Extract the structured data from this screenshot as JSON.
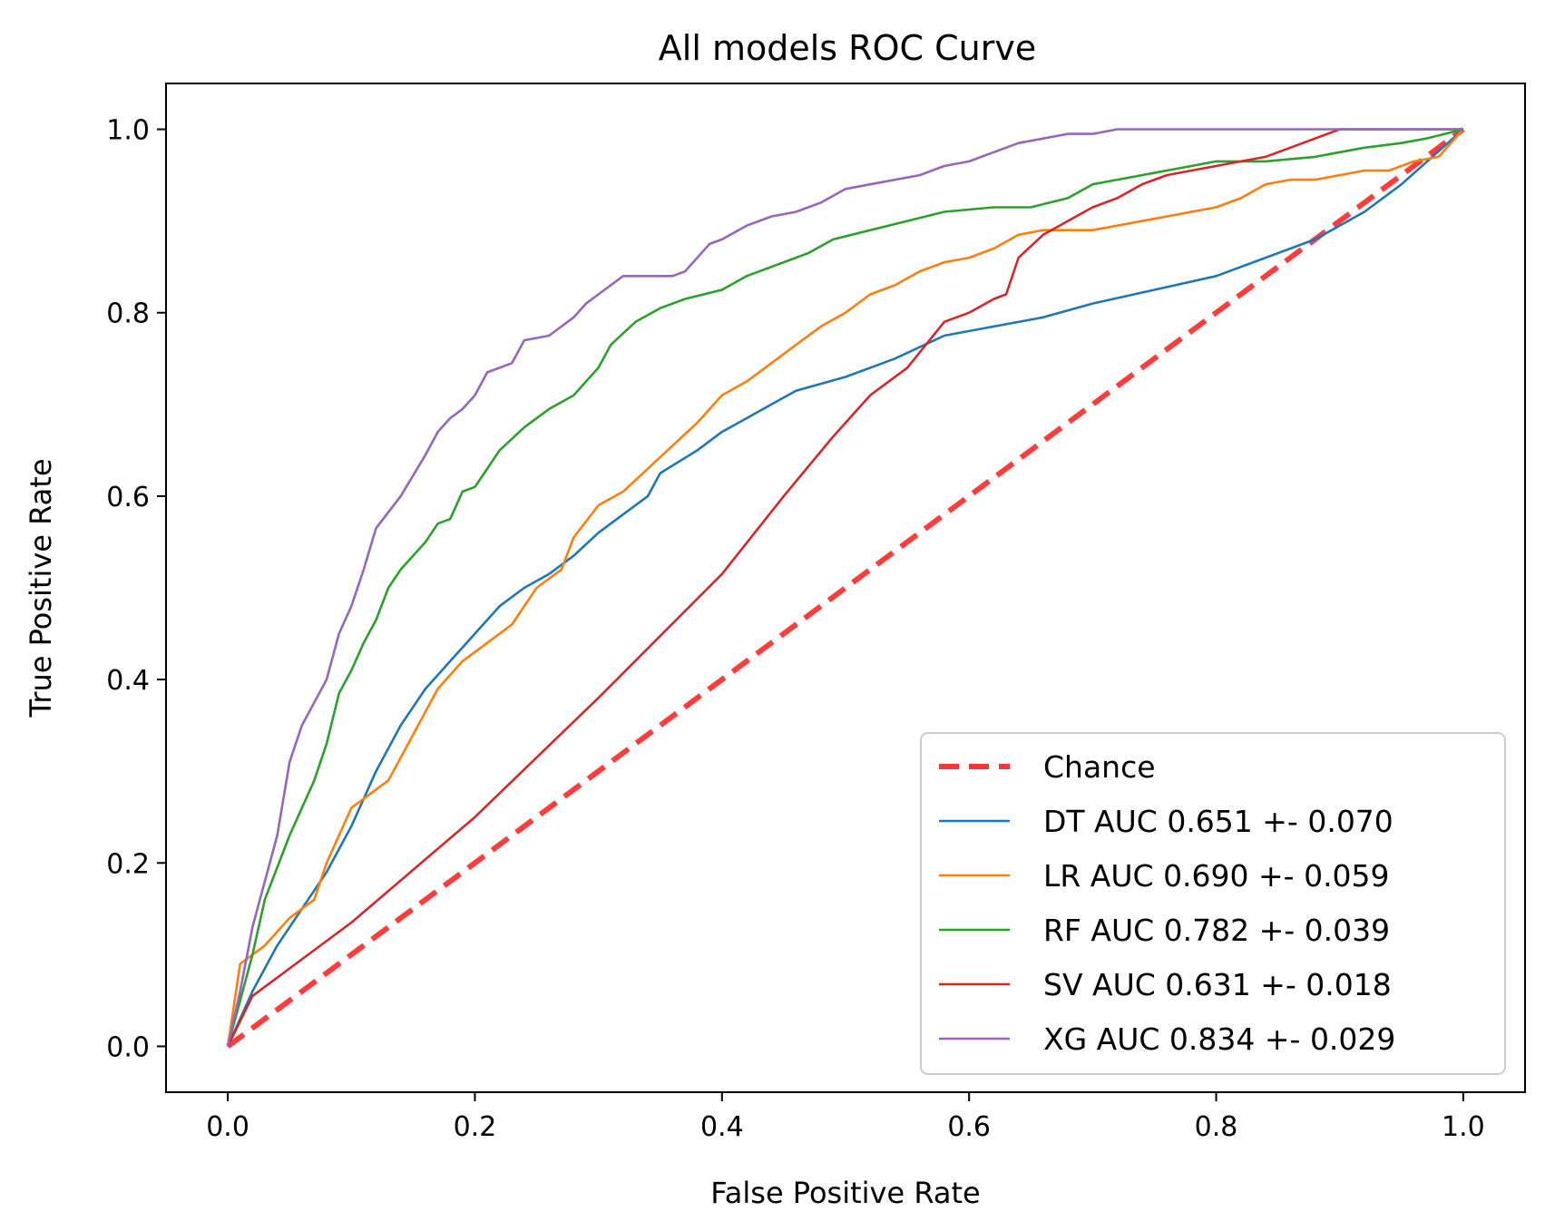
{
  "chart_data": {
    "type": "line",
    "title": "All models ROC Curve",
    "xlabel": "False Positive Rate",
    "ylabel": "True Positive Rate",
    "xlim": [
      -0.05,
      1.05
    ],
    "ylim": [
      -0.05,
      1.05
    ],
    "xticks": [
      0.0,
      0.2,
      0.4,
      0.6,
      0.8,
      1.0
    ],
    "yticks": [
      0.0,
      0.2,
      0.4,
      0.6,
      0.8,
      1.0
    ],
    "xtick_labels": [
      "0.0",
      "0.2",
      "0.4",
      "0.6",
      "0.8",
      "1.0"
    ],
    "ytick_labels": [
      "0.0",
      "0.2",
      "0.4",
      "0.6",
      "0.8",
      "1.0"
    ],
    "grid": false,
    "legend_position": "lower-right",
    "series": [
      {
        "name": "Chance",
        "color": "#ff3333",
        "style": "dashed",
        "x": [
          0.0,
          1.0
        ],
        "y": [
          0.0,
          1.0
        ]
      },
      {
        "name": "DT AUC 0.651 +- 0.070",
        "color": "#1f77b4",
        "style": "solid",
        "x": [
          0.0,
          0.02,
          0.04,
          0.06,
          0.08,
          0.1,
          0.12,
          0.14,
          0.16,
          0.18,
          0.2,
          0.22,
          0.24,
          0.26,
          0.28,
          0.3,
          0.32,
          0.34,
          0.35,
          0.38,
          0.4,
          0.42,
          0.44,
          0.46,
          0.5,
          0.54,
          0.58,
          0.62,
          0.66,
          0.7,
          0.75,
          0.8,
          0.84,
          0.88,
          0.92,
          0.95,
          1.0
        ],
        "y": [
          0.0,
          0.06,
          0.11,
          0.15,
          0.19,
          0.24,
          0.3,
          0.35,
          0.39,
          0.42,
          0.45,
          0.48,
          0.5,
          0.515,
          0.535,
          0.56,
          0.58,
          0.6,
          0.625,
          0.65,
          0.67,
          0.685,
          0.7,
          0.715,
          0.73,
          0.75,
          0.775,
          0.785,
          0.795,
          0.81,
          0.825,
          0.84,
          0.86,
          0.88,
          0.91,
          0.94,
          1.0
        ]
      },
      {
        "name": "LR AUC 0.690 +- 0.059",
        "color": "#ff7f0e",
        "style": "solid",
        "x": [
          0.0,
          0.01,
          0.03,
          0.05,
          0.07,
          0.08,
          0.1,
          0.13,
          0.15,
          0.17,
          0.19,
          0.21,
          0.23,
          0.25,
          0.27,
          0.28,
          0.3,
          0.32,
          0.34,
          0.36,
          0.38,
          0.4,
          0.42,
          0.44,
          0.46,
          0.48,
          0.5,
          0.52,
          0.54,
          0.56,
          0.58,
          0.6,
          0.62,
          0.64,
          0.66,
          0.7,
          0.72,
          0.74,
          0.76,
          0.78,
          0.8,
          0.82,
          0.84,
          0.86,
          0.88,
          0.9,
          0.92,
          0.94,
          0.96,
          0.98,
          1.0
        ],
        "y": [
          0.0,
          0.09,
          0.11,
          0.14,
          0.16,
          0.2,
          0.26,
          0.29,
          0.34,
          0.39,
          0.42,
          0.44,
          0.46,
          0.5,
          0.52,
          0.555,
          0.59,
          0.605,
          0.63,
          0.655,
          0.68,
          0.71,
          0.725,
          0.745,
          0.765,
          0.785,
          0.8,
          0.82,
          0.83,
          0.845,
          0.855,
          0.86,
          0.87,
          0.885,
          0.89,
          0.89,
          0.895,
          0.9,
          0.905,
          0.91,
          0.915,
          0.925,
          0.94,
          0.945,
          0.945,
          0.95,
          0.955,
          0.955,
          0.965,
          0.97,
          1.0
        ]
      },
      {
        "name": "RF AUC 0.782 +- 0.039",
        "color": "#2ca02c",
        "style": "solid",
        "x": [
          0.0,
          0.01,
          0.02,
          0.03,
          0.05,
          0.07,
          0.08,
          0.09,
          0.1,
          0.11,
          0.12,
          0.13,
          0.14,
          0.16,
          0.17,
          0.18,
          0.19,
          0.2,
          0.21,
          0.22,
          0.24,
          0.26,
          0.28,
          0.3,
          0.31,
          0.33,
          0.35,
          0.37,
          0.4,
          0.42,
          0.45,
          0.47,
          0.49,
          0.52,
          0.55,
          0.58,
          0.62,
          0.65,
          0.68,
          0.7,
          0.72,
          0.74,
          0.76,
          0.78,
          0.8,
          0.84,
          0.88,
          0.9,
          0.92,
          0.95,
          0.97,
          1.0
        ],
        "y": [
          0.0,
          0.05,
          0.1,
          0.16,
          0.23,
          0.29,
          0.33,
          0.385,
          0.41,
          0.44,
          0.465,
          0.5,
          0.52,
          0.55,
          0.57,
          0.575,
          0.605,
          0.61,
          0.63,
          0.65,
          0.675,
          0.695,
          0.71,
          0.74,
          0.765,
          0.79,
          0.805,
          0.815,
          0.825,
          0.84,
          0.855,
          0.865,
          0.88,
          0.89,
          0.9,
          0.91,
          0.915,
          0.915,
          0.925,
          0.94,
          0.945,
          0.95,
          0.955,
          0.96,
          0.965,
          0.965,
          0.97,
          0.975,
          0.98,
          0.985,
          0.99,
          1.0
        ]
      },
      {
        "name": "SV AUC 0.631 +- 0.018",
        "color": "#d62728",
        "style": "solid",
        "x": [
          0.0,
          0.02,
          0.1,
          0.2,
          0.3,
          0.4,
          0.45,
          0.49,
          0.52,
          0.55,
          0.58,
          0.6,
          0.62,
          0.63,
          0.64,
          0.66,
          0.68,
          0.7,
          0.72,
          0.74,
          0.76,
          0.78,
          0.8,
          0.82,
          0.84,
          0.86,
          0.88,
          0.9,
          0.95,
          1.0
        ],
        "y": [
          0.0,
          0.055,
          0.135,
          0.25,
          0.38,
          0.515,
          0.6,
          0.665,
          0.71,
          0.74,
          0.79,
          0.8,
          0.815,
          0.82,
          0.86,
          0.885,
          0.9,
          0.915,
          0.925,
          0.94,
          0.95,
          0.955,
          0.96,
          0.965,
          0.97,
          0.98,
          0.99,
          1.0,
          1.0,
          1.0
        ]
      },
      {
        "name": "XG AUC 0.834 +- 0.029",
        "color": "#9467bd",
        "style": "solid",
        "x": [
          0.0,
          0.01,
          0.02,
          0.04,
          0.05,
          0.06,
          0.08,
          0.09,
          0.1,
          0.11,
          0.12,
          0.14,
          0.16,
          0.17,
          0.18,
          0.19,
          0.2,
          0.21,
          0.22,
          0.23,
          0.24,
          0.26,
          0.28,
          0.29,
          0.3,
          0.32,
          0.34,
          0.36,
          0.37,
          0.38,
          0.39,
          0.4,
          0.42,
          0.44,
          0.46,
          0.48,
          0.5,
          0.52,
          0.54,
          0.56,
          0.58,
          0.6,
          0.62,
          0.64,
          0.66,
          0.68,
          0.7,
          0.72,
          0.75,
          0.8,
          0.9,
          1.0
        ],
        "y": [
          0.0,
          0.06,
          0.13,
          0.23,
          0.31,
          0.35,
          0.4,
          0.45,
          0.48,
          0.52,
          0.565,
          0.6,
          0.645,
          0.67,
          0.685,
          0.695,
          0.71,
          0.735,
          0.74,
          0.745,
          0.77,
          0.775,
          0.795,
          0.81,
          0.82,
          0.84,
          0.84,
          0.84,
          0.845,
          0.86,
          0.875,
          0.88,
          0.895,
          0.905,
          0.91,
          0.92,
          0.935,
          0.94,
          0.945,
          0.95,
          0.96,
          0.965,
          0.975,
          0.985,
          0.99,
          0.995,
          0.995,
          1.0,
          1.0,
          1.0,
          1.0,
          1.0
        ]
      }
    ]
  }
}
